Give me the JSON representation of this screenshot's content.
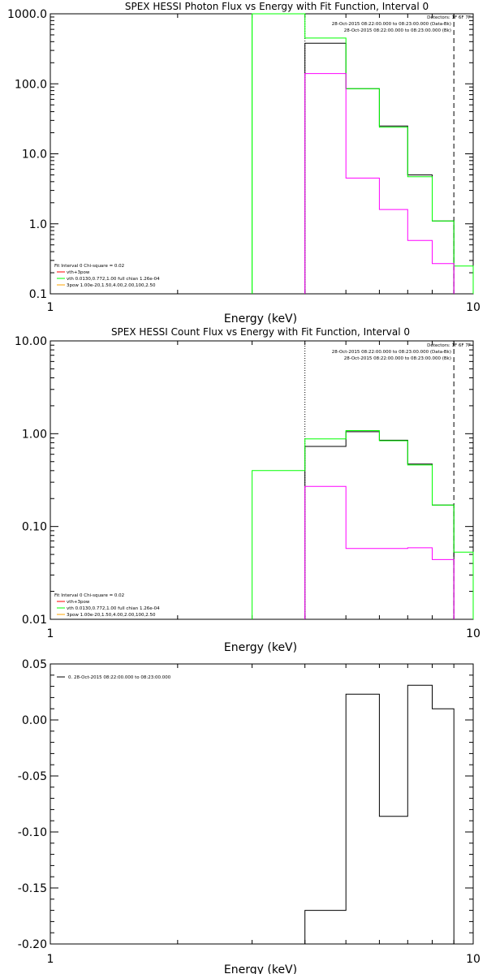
{
  "colors": {
    "black": "#000000",
    "magenta": "#ff00ff",
    "green": "#00ff00",
    "red": "#ff0000",
    "orange": "#ffa500"
  },
  "chart_data": [
    {
      "type": "line",
      "title": "SPEX HESSI Photon Flux vs Energy with Fit Function, Interval 0",
      "xlabel": "Energy (keV)",
      "ylabel": "",
      "xscale": "log",
      "yscale": "log",
      "xlim": [
        1,
        10
      ],
      "ylim": [
        0.1,
        1000
      ],
      "x_ticks": [
        "1",
        "10"
      ],
      "y_ticks": [
        "0.1",
        "1.0",
        "10.0",
        "100.0",
        "1000.0"
      ],
      "header_text": [
        "Detectors: 1F 6F 7F",
        "28-Oct-2015 08:22:00.000 to 08:23:00.000 (Data-Bk)",
        "28-Oct-2015 08:22:00.000 to 08:23:00.000 (Bk)"
      ],
      "fit_text": [
        "Fit Interval 0   Chi-square = 0.02",
        "vth+3pow",
        "vth 0.0130,0.772,1.00  full chian 1.26e-04",
        "3pow 1.00e-20,1.50,4.00,2.00,100,2.50"
      ],
      "vlines": [
        {
          "x": 3.0,
          "style": "solid",
          "color": "green"
        },
        {
          "x": 4.0,
          "style": "dotted",
          "color": "black"
        },
        {
          "x": 9.0,
          "style": "dashed",
          "color": "black"
        }
      ],
      "series": [
        {
          "color": "black",
          "edges": [
            4,
            5,
            6,
            7,
            8,
            9
          ],
          "values": [
            380,
            85,
            25,
            5,
            1.1
          ]
        },
        {
          "color": "green",
          "edges": [
            3,
            4,
            5,
            6,
            7,
            8,
            9,
            10
          ],
          "values": [
            1000,
            450,
            85,
            24,
            4.7,
            1.1,
            0.25
          ]
        },
        {
          "color": "magenta",
          "edges": [
            4,
            5,
            6,
            7,
            8,
            9
          ],
          "values": [
            140,
            4.5,
            1.6,
            0.58,
            0.27
          ]
        }
      ]
    },
    {
      "type": "line",
      "title": "SPEX HESSI Count Flux vs Energy with Fit Function, Interval 0",
      "xlabel": "Energy (keV)",
      "ylabel": "",
      "xscale": "log",
      "yscale": "log",
      "xlim": [
        1,
        10
      ],
      "ylim": [
        0.01,
        10
      ],
      "x_ticks": [
        "1",
        "10"
      ],
      "y_ticks": [
        "0.01",
        "0.10",
        "1.00",
        "10.00"
      ],
      "header_text": [
        "Detectors: 1F 6F 7F",
        "28-Oct-2015 08:22:00.000 to 08:23:00.000 (Data-Bk)",
        "28-Oct-2015 08:22:00.000 to 08:23:00.000 (Bk)"
      ],
      "fit_text": [
        "Fit Interval 0   Chi-square = 0.02",
        "vth+3pow",
        "vth 0.0130,0.772,1.00  full chian 1.26e-04",
        "3pow 1.00e-20,1.50,4.00,2.00,100,2.50"
      ],
      "vlines": [
        {
          "x": 4.0,
          "style": "dotted",
          "color": "black"
        },
        {
          "x": 9.0,
          "style": "dashed",
          "color": "black"
        }
      ],
      "series": [
        {
          "color": "black",
          "edges": [
            4,
            5,
            6,
            7,
            8,
            9
          ],
          "values": [
            0.73,
            1.05,
            0.85,
            0.47,
            0.17
          ]
        },
        {
          "color": "green",
          "edges": [
            3,
            4,
            5,
            6,
            7,
            8,
            9,
            10
          ],
          "values": [
            0.4,
            0.88,
            1.08,
            0.84,
            0.46,
            0.17,
            0.053
          ]
        },
        {
          "color": "magenta",
          "edges": [
            4,
            5,
            6,
            7,
            8,
            9
          ],
          "values": [
            0.27,
            0.058,
            0.058,
            0.059,
            0.044
          ]
        }
      ]
    },
    {
      "type": "line",
      "title": "",
      "xlabel": "Energy (keV)",
      "ylabel": "",
      "xscale": "log",
      "yscale": "linear",
      "xlim": [
        1,
        10
      ],
      "ylim": [
        -0.2,
        0.05
      ],
      "x_ticks": [
        "1",
        "10"
      ],
      "y_ticks": [
        "-0.20",
        "-0.15",
        "-0.10",
        "-0.05",
        "0.00",
        "0.05"
      ],
      "legend": "0. 28-Oct-2015 08:22:00.000 to 08:23:00.000",
      "series": [
        {
          "color": "black",
          "edges": [
            4,
            5,
            6,
            7,
            8,
            9
          ],
          "values": [
            -0.17,
            0.023,
            -0.086,
            0.031,
            0.01
          ]
        }
      ]
    }
  ]
}
